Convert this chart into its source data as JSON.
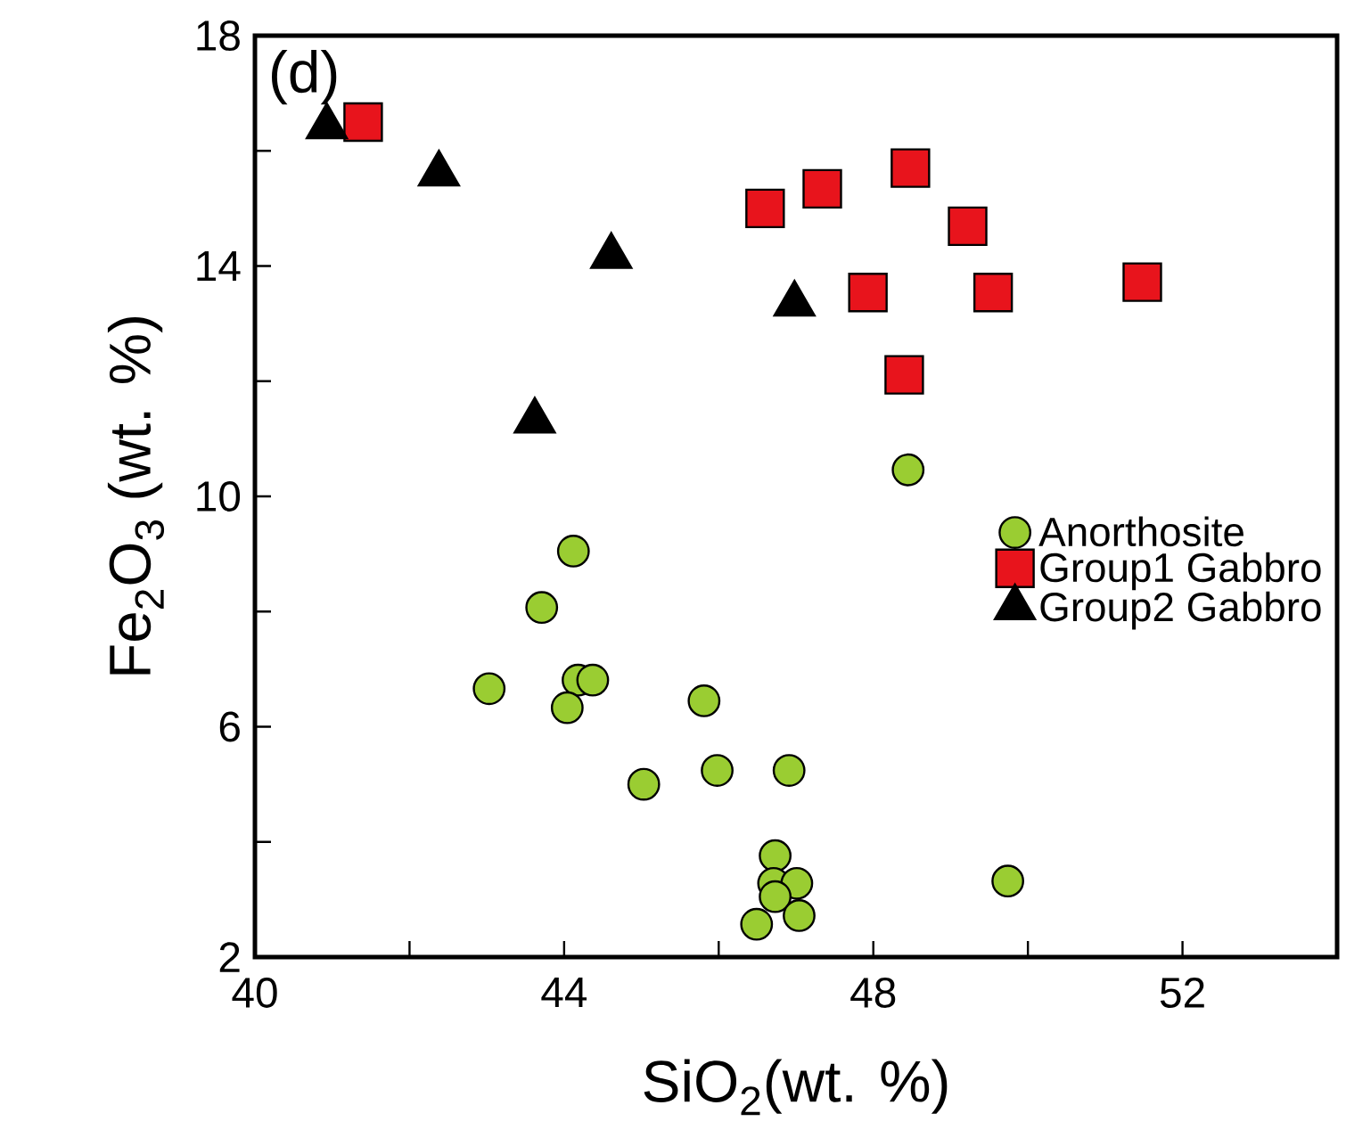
{
  "chart_data": {
    "type": "scatter",
    "xlabel": "SiO$_{2}$(wt. %)",
    "ylabel": "Fe$_{2}$O$_{3}$ (wt. %)",
    "annotations": [
      "(d)"
    ],
    "xlim": [
      40,
      54
    ],
    "ylim": [
      2,
      18
    ],
    "xticks": [
      40,
      {
        "value": 42,
        "label": null
      },
      44,
      {
        "value": 46,
        "label": null
      },
      48,
      {
        "value": 50,
        "label": null
      },
      52
    ],
    "yticks": [
      2,
      {
        "value": 4,
        "label": null
      },
      6,
      {
        "value": 8,
        "label": null
      },
      10,
      {
        "value": 12,
        "label": null
      },
      14,
      {
        "value": 16,
        "label": null
      },
      18
    ],
    "grid": false,
    "legend": "right",
    "series": [
      {
        "name": "Anorthosite",
        "color": "#9acd32",
        "marker": "circle",
        "x": [
          48.45,
          44.12,
          43.71,
          43.03,
          44.18,
          44.37,
          44.04,
          45.81,
          45.98,
          46.91,
          45.03,
          46.73,
          46.71,
          47.01,
          46.73,
          47.04,
          46.49,
          49.74
        ],
        "values": [
          10.46,
          9.05,
          8.07,
          6.66,
          6.81,
          6.81,
          6.33,
          6.45,
          5.24,
          5.24,
          5.0,
          3.76,
          3.28,
          3.28,
          3.05,
          2.72,
          2.57,
          3.32
        ]
      },
      {
        "name": "Group1 Gabbro",
        "color": "#e8141c",
        "marker": "square",
        "x": [
          41.4,
          46.6,
          47.34,
          48.48,
          49.22,
          47.93,
          49.55,
          51.48,
          48.4
        ],
        "values": [
          16.5,
          15.0,
          15.34,
          15.7,
          14.69,
          13.54,
          13.54,
          13.72,
          12.11
        ]
      },
      {
        "name": "Group2 Gabbro",
        "color": "#000000",
        "marker": "triangle",
        "x": [
          40.93,
          42.38,
          44.61,
          46.98,
          43.62
        ],
        "values": [
          16.42,
          15.6,
          14.17,
          13.34,
          11.31
        ]
      }
    ]
  }
}
